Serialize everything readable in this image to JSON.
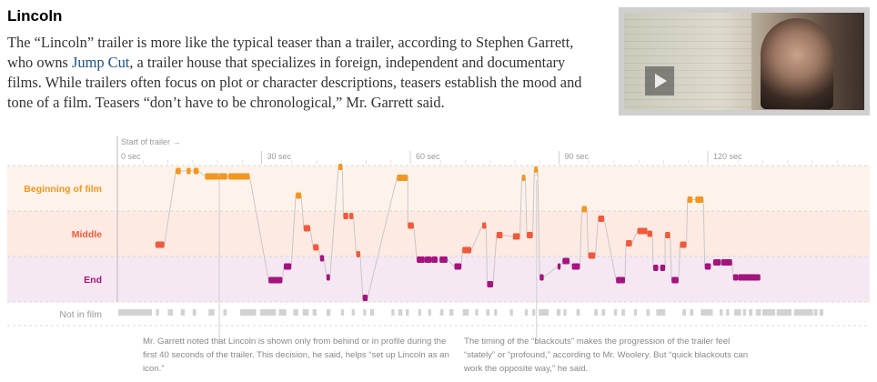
{
  "article": {
    "title": "Lincoln",
    "intro_before_link": "The “Lincoln” trailer is more like the typical teaser than a trailer, according to Stephen Garrett, who owns ",
    "intro_link": "Jump Cut",
    "intro_after_link": ", a trailer house that specializes in foreign, independent and documentary films. While trailers often focus on plot or character descriptions, teasers establish the mood and tone of a film. Teasers “don’t have to be chronological,” Mr. Garrett said."
  },
  "video": {
    "thumbnail": "Lincoln trailer still",
    "play_icon": "play-icon"
  },
  "chart_data": {
    "type": "timeline",
    "axis_title": "Start of trailer →",
    "x_unit": "seconds",
    "xlim": [
      0,
      148
    ],
    "ticks": [
      {
        "value": 0,
        "label": "0 sec"
      },
      {
        "value": 30,
        "label": "30 sec"
      },
      {
        "value": 60,
        "label": "60 sec"
      },
      {
        "value": 90,
        "label": "90 sec"
      },
      {
        "value": 120,
        "label": "120 sec"
      }
    ],
    "rows": [
      {
        "key": "beginning",
        "label": "Beginning of film",
        "color": "#f3961f",
        "band": "#fdf3ea"
      },
      {
        "key": "middle",
        "label": "Middle",
        "color": "#f05a3a",
        "band": "#fceae3"
      },
      {
        "key": "end",
        "label": "End",
        "color": "#a5137f",
        "band": "#f5e8f2"
      },
      {
        "key": "notinfilm",
        "label": "Not in film",
        "color": "#d2d2d2",
        "band": "#ffffff"
      }
    ],
    "row_position_scale": [
      0,
      1
    ],
    "shots": [
      {
        "t": 7.5,
        "d": 1.8,
        "pos": 0.58
      },
      {
        "t": 11.6,
        "d": 1.0,
        "pos": 0.04
      },
      {
        "t": 13.8,
        "d": 0.8,
        "pos": 0.04
      },
      {
        "t": 15.2,
        "d": 1.0,
        "pos": 0.04
      },
      {
        "t": 17.5,
        "d": 4.5,
        "pos": 0.08
      },
      {
        "t": 22.2,
        "d": 4.3,
        "pos": 0.08
      },
      {
        "t": 30.3,
        "d": 2.8,
        "pos": 0.84
      },
      {
        "t": 33.4,
        "d": 1.5,
        "pos": 0.74
      },
      {
        "t": 35.8,
        "d": 1.1,
        "pos": 0.22
      },
      {
        "t": 37.4,
        "d": 1.3,
        "pos": 0.46
      },
      {
        "t": 39.3,
        "d": 1.1,
        "pos": 0.6
      },
      {
        "t": 40.7,
        "d": 0.8,
        "pos": 0.68
      },
      {
        "t": 42.0,
        "d": 0.7,
        "pos": 0.82
      },
      {
        "t": 44.4,
        "d": 0.8,
        "pos": 0.01
      },
      {
        "t": 45.4,
        "d": 1.0,
        "pos": 0.37
      },
      {
        "t": 46.6,
        "d": 0.8,
        "pos": 0.37
      },
      {
        "t": 48.0,
        "d": 0.8,
        "pos": 0.65
      },
      {
        "t": 49.3,
        "d": 1.0,
        "pos": 0.97
      },
      {
        "t": 56.2,
        "d": 2.2,
        "pos": 0.09
      },
      {
        "t": 58.4,
        "d": 1.2,
        "pos": 0.44
      },
      {
        "t": 60.2,
        "d": 1.6,
        "pos": 0.69
      },
      {
        "t": 61.8,
        "d": 1.4,
        "pos": 0.69
      },
      {
        "t": 63.2,
        "d": 1.2,
        "pos": 0.69
      },
      {
        "t": 64.8,
        "d": 1.6,
        "pos": 0.69
      },
      {
        "t": 67.8,
        "d": 1.4,
        "pos": 0.74
      },
      {
        "t": 69.4,
        "d": 1.8,
        "pos": 0.62
      },
      {
        "t": 73.4,
        "d": 0.8,
        "pos": 0.44
      },
      {
        "t": 74.4,
        "d": 1.2,
        "pos": 0.87
      },
      {
        "t": 76.3,
        "d": 1.2,
        "pos": 0.51
      },
      {
        "t": 79.6,
        "d": 1.4,
        "pos": 0.52
      },
      {
        "t": 81.4,
        "d": 0.7,
        "pos": 0.09
      },
      {
        "t": 82.4,
        "d": 1.2,
        "pos": 0.51
      },
      {
        "t": 83.9,
        "d": 0.7,
        "pos": 0.03
      },
      {
        "t": 85.0,
        "d": 0.8,
        "pos": 0.82
      },
      {
        "t": 88.6,
        "d": 0.6,
        "pos": 0.74
      },
      {
        "t": 89.6,
        "d": 1.4,
        "pos": 0.7
      },
      {
        "t": 91.5,
        "d": 1.6,
        "pos": 0.74
      },
      {
        "t": 93.5,
        "d": 1.0,
        "pos": 0.32
      },
      {
        "t": 94.8,
        "d": 1.4,
        "pos": 0.66
      },
      {
        "t": 96.8,
        "d": 1.2,
        "pos": 0.39
      },
      {
        "t": 100.4,
        "d": 1.8,
        "pos": 0.84
      },
      {
        "t": 102.4,
        "d": 1.2,
        "pos": 0.57
      },
      {
        "t": 104.7,
        "d": 2.0,
        "pos": 0.48
      },
      {
        "t": 106.7,
        "d": 1.0,
        "pos": 0.5
      },
      {
        "t": 107.9,
        "d": 1.0,
        "pos": 0.75
      },
      {
        "t": 109.3,
        "d": 1.0,
        "pos": 0.75
      },
      {
        "t": 110.3,
        "d": 1.0,
        "pos": 0.51
      },
      {
        "t": 111.6,
        "d": 1.4,
        "pos": 0.84
      },
      {
        "t": 113.3,
        "d": 1.3,
        "pos": 0.58
      },
      {
        "t": 114.8,
        "d": 1.0,
        "pos": 0.25
      },
      {
        "t": 116.4,
        "d": 1.6,
        "pos": 0.25
      },
      {
        "t": 118.3,
        "d": 1.2,
        "pos": 0.74
      },
      {
        "t": 120.0,
        "d": 1.5,
        "pos": 0.71
      },
      {
        "t": 121.6,
        "d": 2.2,
        "pos": 0.71
      },
      {
        "t": 124.0,
        "d": 1.0,
        "pos": 0.82
      },
      {
        "t": 125.0,
        "d": 4.5,
        "pos": 0.82
      }
    ],
    "not_in_film": [
      {
        "t": 0.0,
        "d": 6.8
      },
      {
        "t": 7.6,
        "d": 0.6
      },
      {
        "t": 10.0,
        "d": 1.0
      },
      {
        "t": 12.6,
        "d": 0.8
      },
      {
        "t": 15.0,
        "d": 0.7
      },
      {
        "t": 18.2,
        "d": 1.2
      },
      {
        "t": 21.2,
        "d": 0.7
      },
      {
        "t": 24.6,
        "d": 3.2
      },
      {
        "t": 28.6,
        "d": 3.2
      },
      {
        "t": 32.4,
        "d": 1.5
      },
      {
        "t": 35.3,
        "d": 1.0
      },
      {
        "t": 37.2,
        "d": 1.2
      },
      {
        "t": 39.2,
        "d": 0.8
      },
      {
        "t": 42.0,
        "d": 0.8
      },
      {
        "t": 44.9,
        "d": 0.6
      },
      {
        "t": 47.1,
        "d": 0.6
      },
      {
        "t": 49.4,
        "d": 0.6
      },
      {
        "t": 50.8,
        "d": 0.8
      },
      {
        "t": 55.1,
        "d": 0.6
      },
      {
        "t": 56.5,
        "d": 0.8
      },
      {
        "t": 58.0,
        "d": 0.6
      },
      {
        "t": 60.5,
        "d": 0.6
      },
      {
        "t": 62.5,
        "d": 0.6
      },
      {
        "t": 64.9,
        "d": 0.7
      },
      {
        "t": 66.8,
        "d": 0.8
      },
      {
        "t": 69.5,
        "d": 1.2
      },
      {
        "t": 72.0,
        "d": 0.6
      },
      {
        "t": 74.2,
        "d": 0.7
      },
      {
        "t": 75.8,
        "d": 0.6
      },
      {
        "t": 79.0,
        "d": 0.6
      },
      {
        "t": 82.0,
        "d": 0.6
      },
      {
        "t": 83.5,
        "d": 0.6
      },
      {
        "t": 84.8,
        "d": 2.0
      },
      {
        "t": 88.4,
        "d": 0.8
      },
      {
        "t": 89.8,
        "d": 0.6
      },
      {
        "t": 92.4,
        "d": 0.7
      },
      {
        "t": 96.0,
        "d": 0.7
      },
      {
        "t": 97.5,
        "d": 0.7
      },
      {
        "t": 100.0,
        "d": 0.6
      },
      {
        "t": 101.5,
        "d": 0.7
      },
      {
        "t": 104.0,
        "d": 0.6
      },
      {
        "t": 106.5,
        "d": 0.7
      },
      {
        "t": 108.5,
        "d": 1.8
      },
      {
        "t": 113.8,
        "d": 0.7
      },
      {
        "t": 115.3,
        "d": 0.7
      },
      {
        "t": 117.5,
        "d": 2.4
      },
      {
        "t": 121.3,
        "d": 0.6
      },
      {
        "t": 122.6,
        "d": 0.6
      },
      {
        "t": 124.2,
        "d": 1.4
      },
      {
        "t": 126.0,
        "d": 0.6
      },
      {
        "t": 127.2,
        "d": 0.7
      },
      {
        "t": 128.6,
        "d": 1.0
      },
      {
        "t": 129.9,
        "d": 2.6
      },
      {
        "t": 132.8,
        "d": 3.0
      },
      {
        "t": 136.3,
        "d": 3.8
      },
      {
        "t": 140.3,
        "d": 0.7
      },
      {
        "t": 141.4,
        "d": 0.8
      }
    ],
    "annotations": [
      {
        "t": 20.0,
        "text": "Mr. Garrett noted that Lincoln is shown only from behind or in profile during the first 40 seconds of the trailer. This decision, he said, helps “set up Lincoln as an icon.”"
      },
      {
        "t": 84.0,
        "text": "The timing of the “blackouts” makes the progression of the trailer feel “stately” or “profound,” according to Mr. Woolery. But “quick blackouts can work the opposite way,” he said."
      }
    ]
  }
}
